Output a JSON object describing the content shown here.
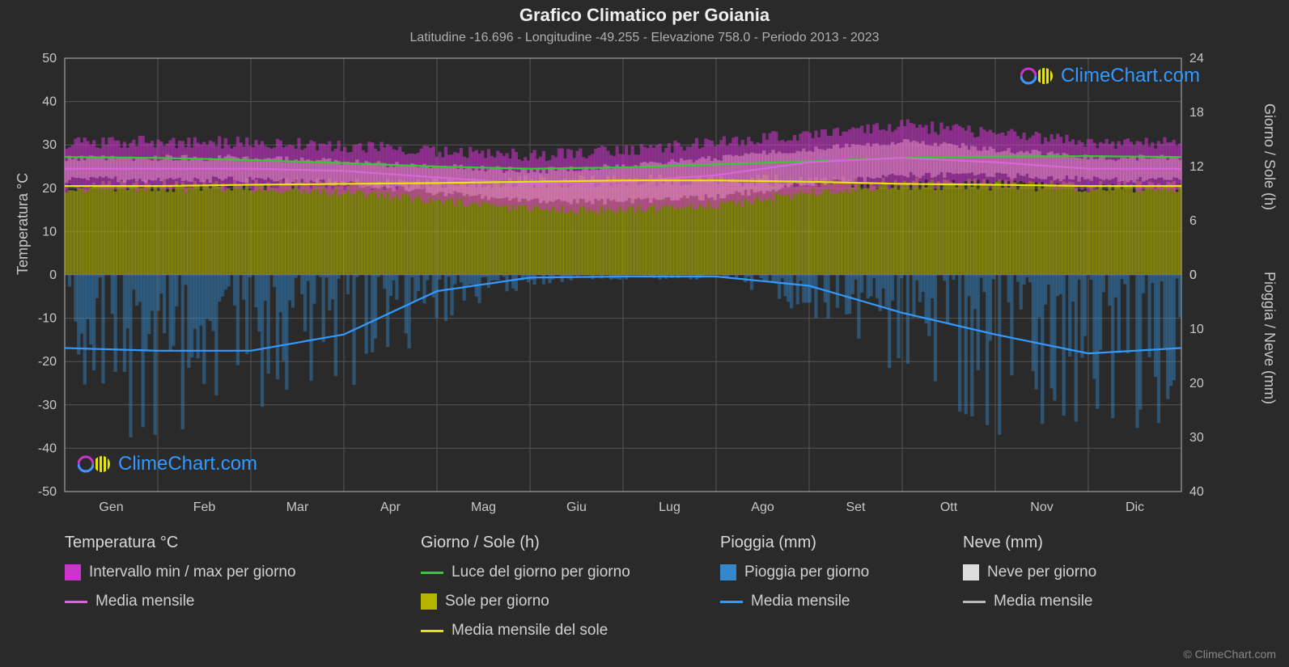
{
  "title": "Grafico Climatico per Goiania",
  "subtitle": "Latitudine -16.696 - Longitudine -49.255 - Elevazione 758.0 - Periodo 2013 - 2023",
  "copyright": "© ClimeChart.com",
  "watermark_text": "ClimeChart.com",
  "colors": {
    "background": "#2a2a2a",
    "grid": "#555555",
    "border": "#888888",
    "temp_band": "#cc33cc",
    "temp_band_inner": "#e68fc6",
    "temp_line": "#d966d9",
    "sun_fill": "#b3b300",
    "sun_line": "#e6e600",
    "daylight_line": "#33cc33",
    "rain_fill": "#3388cc",
    "rain_line": "#3399ff",
    "snow_fill": "#dddddd",
    "snow_line": "#bbbbbb",
    "text": "#d0d0d0",
    "title_text": "#f0f0f0"
  },
  "axes": {
    "y_left_label": "Temperatura °C",
    "y_right_top_label": "Giorno / Sole (h)",
    "y_right_bottom_label": "Pioggia / Neve (mm)",
    "y_left_ticks": [
      -50,
      -40,
      -30,
      -20,
      -10,
      0,
      10,
      20,
      30,
      40,
      50
    ],
    "y_right_top_ticks": [
      0,
      6,
      12,
      18,
      24
    ],
    "y_right_bottom_ticks": [
      0,
      10,
      20,
      30,
      40
    ],
    "x_labels": [
      "Gen",
      "Feb",
      "Mar",
      "Apr",
      "Mag",
      "Giu",
      "Lug",
      "Ago",
      "Set",
      "Ott",
      "Nov",
      "Dic"
    ],
    "temp_range": [
      -50,
      50
    ],
    "rain_range": [
      0,
      40
    ],
    "sun_range": [
      0,
      24
    ]
  },
  "series": {
    "temp_max_daily": [
      30,
      30,
      30,
      29,
      28,
      27,
      28,
      30,
      32,
      34,
      32,
      30
    ],
    "temp_min_daily": [
      20,
      20,
      20,
      19,
      17,
      15,
      15,
      16,
      19,
      21,
      21,
      20
    ],
    "temp_mean_monthly": [
      24.5,
      24.5,
      24.5,
      24,
      22.5,
      21,
      21.5,
      23,
      26,
      27,
      26,
      24.5
    ],
    "daylight_hours": [
      27.2,
      27,
      26.5,
      25.8,
      25,
      24.5,
      24.8,
      25.5,
      26.2,
      27,
      27.3,
      27.4
    ],
    "sun_mean_monthly": [
      20.5,
      20.5,
      20.8,
      21,
      21.2,
      21.5,
      21.8,
      21.8,
      21.5,
      21,
      20.8,
      20.5
    ],
    "rain_mean_monthly": [
      13.5,
      14,
      14,
      11,
      3,
      0.5,
      0.3,
      0.3,
      2,
      7,
      11,
      14.5
    ],
    "rain_daily_peaks": [
      28,
      32,
      26,
      22,
      10,
      2,
      1,
      1,
      8,
      20,
      30,
      32
    ]
  },
  "legend": {
    "col1_heading": "Temperatura °C",
    "col1_item1": "Intervallo min / max per giorno",
    "col1_item2": "Media mensile",
    "col2_heading": "Giorno / Sole (h)",
    "col2_item1": "Luce del giorno per giorno",
    "col2_item2": "Sole per giorno",
    "col2_item3": "Media mensile del sole",
    "col3_heading": "Pioggia (mm)",
    "col3_item1": "Pioggia per giorno",
    "col3_item2": "Media mensile",
    "col4_heading": "Neve (mm)",
    "col4_item1": "Neve per giorno",
    "col4_item2": "Media mensile"
  }
}
